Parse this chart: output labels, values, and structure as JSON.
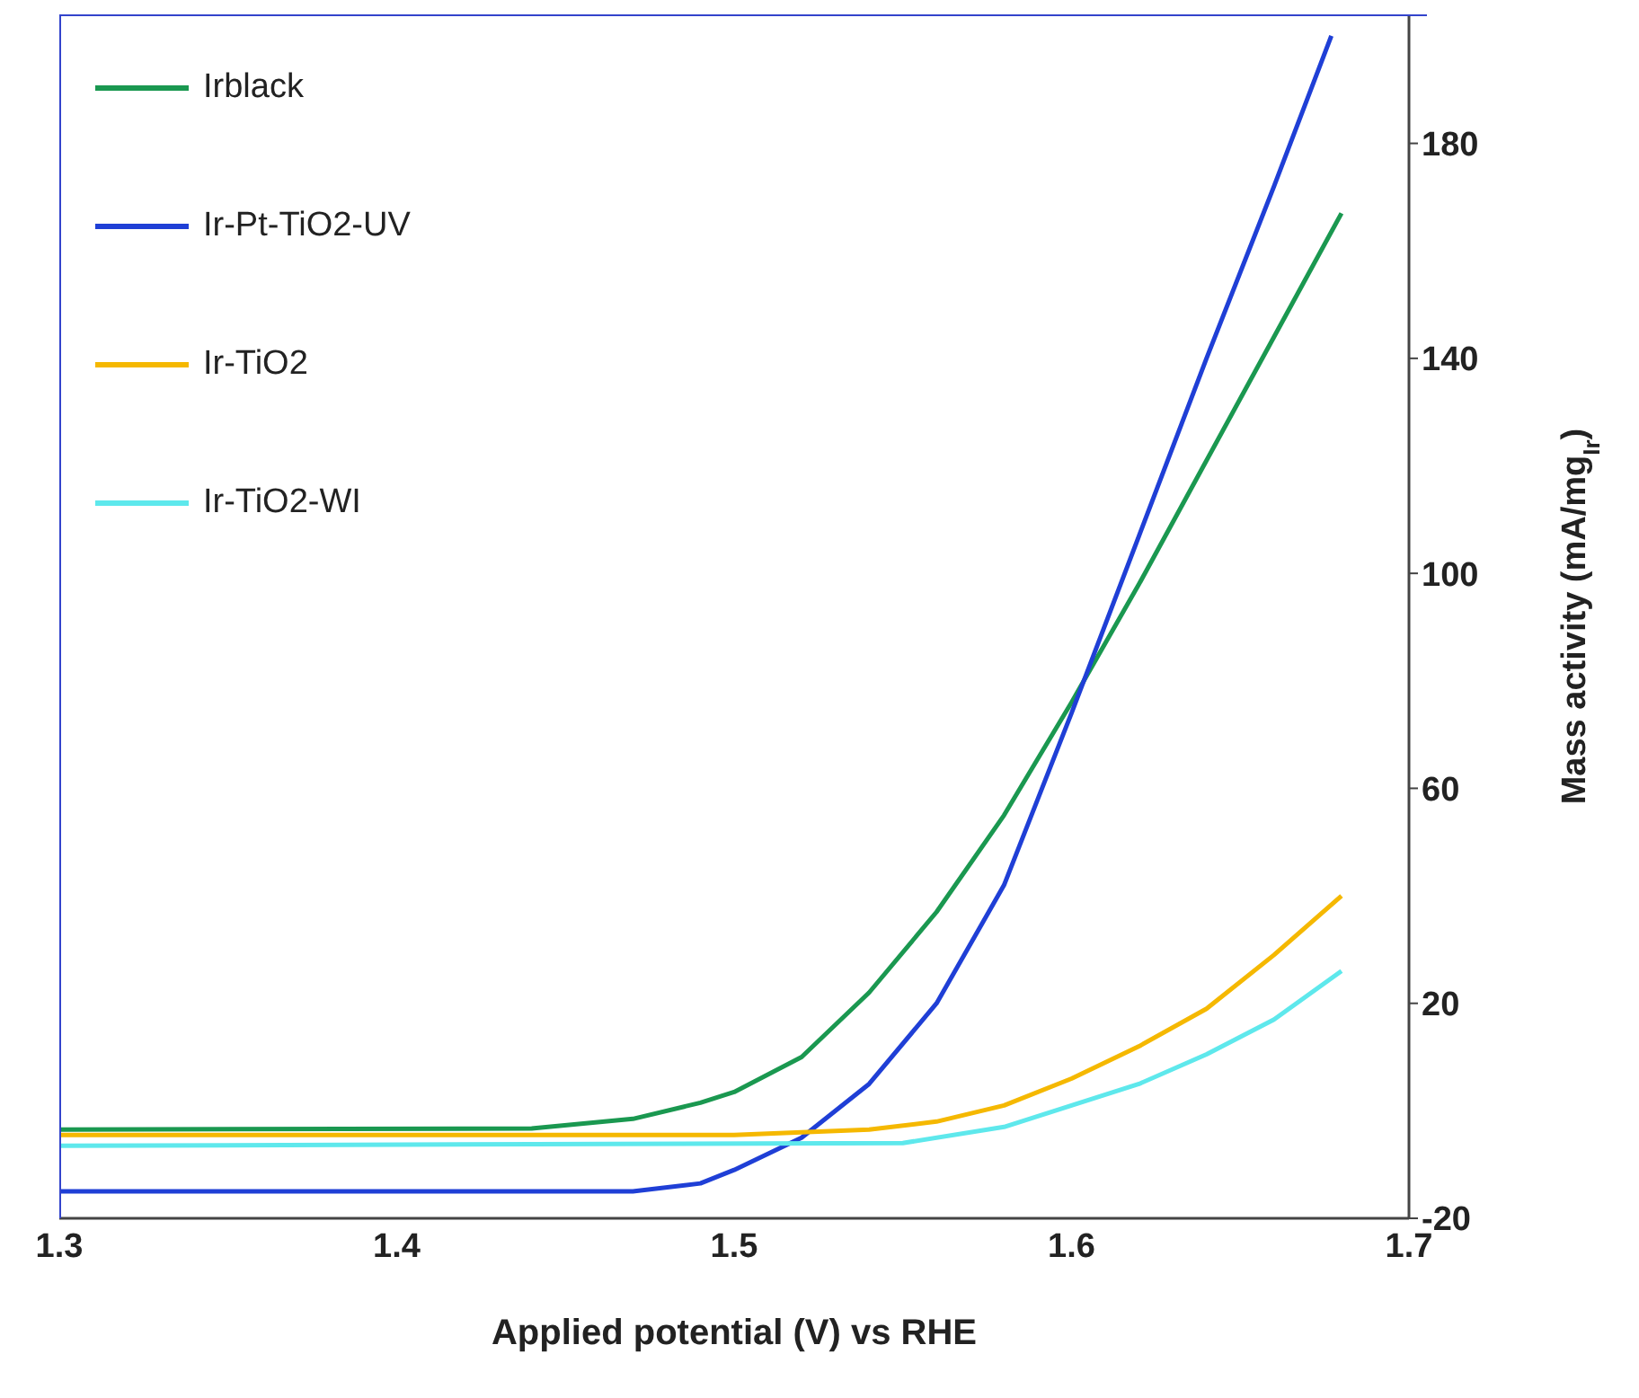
{
  "chart_data": {
    "type": "line",
    "xlabel": "Applied potential (V) vs RHE",
    "ylabel": "Mass activity (mA/mg$_{Ir}$)",
    "xlim": [
      1.3,
      1.7
    ],
    "xticks": [
      1.3,
      1.4,
      1.5,
      1.6,
      1.7
    ],
    "ylim": [
      -20,
      204
    ],
    "yticks": [
      -20,
      20,
      60,
      100,
      140,
      180
    ],
    "grid": false,
    "legend": "top left",
    "marker": "none",
    "line_style": "solid",
    "series": [
      {
        "name": "Irblack",
        "color": "#1a9850",
        "x": [
          1.3,
          1.44,
          1.47,
          1.49,
          1.5,
          1.52,
          1.54,
          1.56,
          1.58,
          1.6,
          1.62,
          1.64,
          1.66,
          1.68
        ],
        "values": [
          -3.5,
          -3.3,
          -1.5,
          1.5,
          3.5,
          10,
          22,
          37,
          55,
          76,
          98,
          121,
          144,
          167
        ]
      },
      {
        "name": "Ir-Pt-TiO2-UV",
        "color": "#1f3fd6",
        "x": [
          1.3,
          1.47,
          1.49,
          1.5,
          1.52,
          1.54,
          1.56,
          1.58,
          1.6,
          1.62,
          1.64,
          1.66,
          1.677
        ],
        "values": [
          -15,
          -15,
          -13.5,
          -11,
          -5,
          5,
          20,
          42,
          74,
          107,
          140,
          172,
          200
        ]
      },
      {
        "name": "Ir-TiO2",
        "color": "#f5b800",
        "x": [
          1.3,
          1.5,
          1.54,
          1.56,
          1.58,
          1.6,
          1.62,
          1.64,
          1.66,
          1.68
        ],
        "values": [
          -4.5,
          -4.5,
          -3.5,
          -2,
          1,
          6,
          12,
          19,
          29,
          40
        ]
      },
      {
        "name": "Ir-TiO2-WI",
        "color": "#5ee8ec",
        "x": [
          1.3,
          1.55,
          1.58,
          1.6,
          1.62,
          1.64,
          1.66,
          1.68
        ],
        "values": [
          -6.5,
          -6,
          -3,
          1,
          5,
          10.5,
          17,
          26
        ]
      }
    ]
  }
}
